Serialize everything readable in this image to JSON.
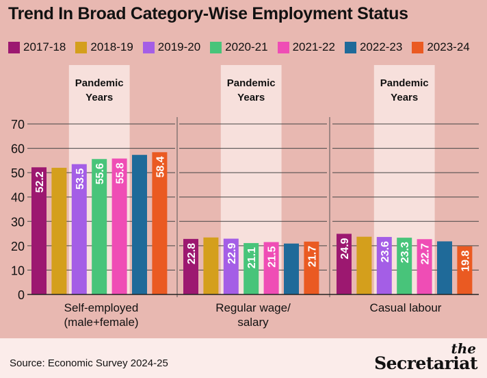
{
  "title": "Trend In Broad Category-Wise Employment Status",
  "legend": [
    {
      "label": "2017-18",
      "color": "#9c1870"
    },
    {
      "label": "2018-19",
      "color": "#d49f1c"
    },
    {
      "label": "2019-20",
      "color": "#a45ee6"
    },
    {
      "label": "2020-21",
      "color": "#48c47a"
    },
    {
      "label": "2021-22",
      "color": "#ef4db5"
    },
    {
      "label": "2022-23",
      "color": "#1f6a99"
    },
    {
      "label": "2023-24",
      "color": "#ea5a22"
    }
  ],
  "pandemic_label": "Pandemic Years",
  "source": "Source: Economic Survey 2024-25",
  "logo": {
    "line1": "the",
    "line2": "Secretariat"
  },
  "chart_data": {
    "type": "bar",
    "categories": [
      "Self-employed (male+female)",
      "Regular wage/ salary",
      "Casual labour"
    ],
    "category_lines": [
      [
        "Self-employed",
        "(male+female)"
      ],
      [
        "Regular wage/",
        "salary"
      ],
      [
        "Casual labour"
      ]
    ],
    "series": [
      {
        "name": "2017-18",
        "values": [
          52.2,
          22.8,
          24.9
        ],
        "labeled": true
      },
      {
        "name": "2018-19",
        "values": [
          52.0,
          23.4,
          23.7
        ],
        "labeled": false
      },
      {
        "name": "2019-20",
        "values": [
          53.5,
          22.9,
          23.6
        ],
        "labeled": true
      },
      {
        "name": "2020-21",
        "values": [
          55.6,
          21.1,
          23.3
        ],
        "labeled": true
      },
      {
        "name": "2021-22",
        "values": [
          55.8,
          21.5,
          22.7
        ],
        "labeled": true
      },
      {
        "name": "2022-23",
        "values": [
          57.3,
          20.9,
          21.8
        ],
        "labeled": false
      },
      {
        "name": "2023-24",
        "values": [
          58.4,
          21.7,
          19.8
        ],
        "labeled": true
      }
    ],
    "pandemic_series": [
      "2019-20",
      "2020-21",
      "2021-22"
    ],
    "y_ticks": [
      0,
      10,
      20,
      30,
      40,
      50,
      60,
      70
    ],
    "ylim": [
      0,
      70
    ],
    "grid": true
  }
}
